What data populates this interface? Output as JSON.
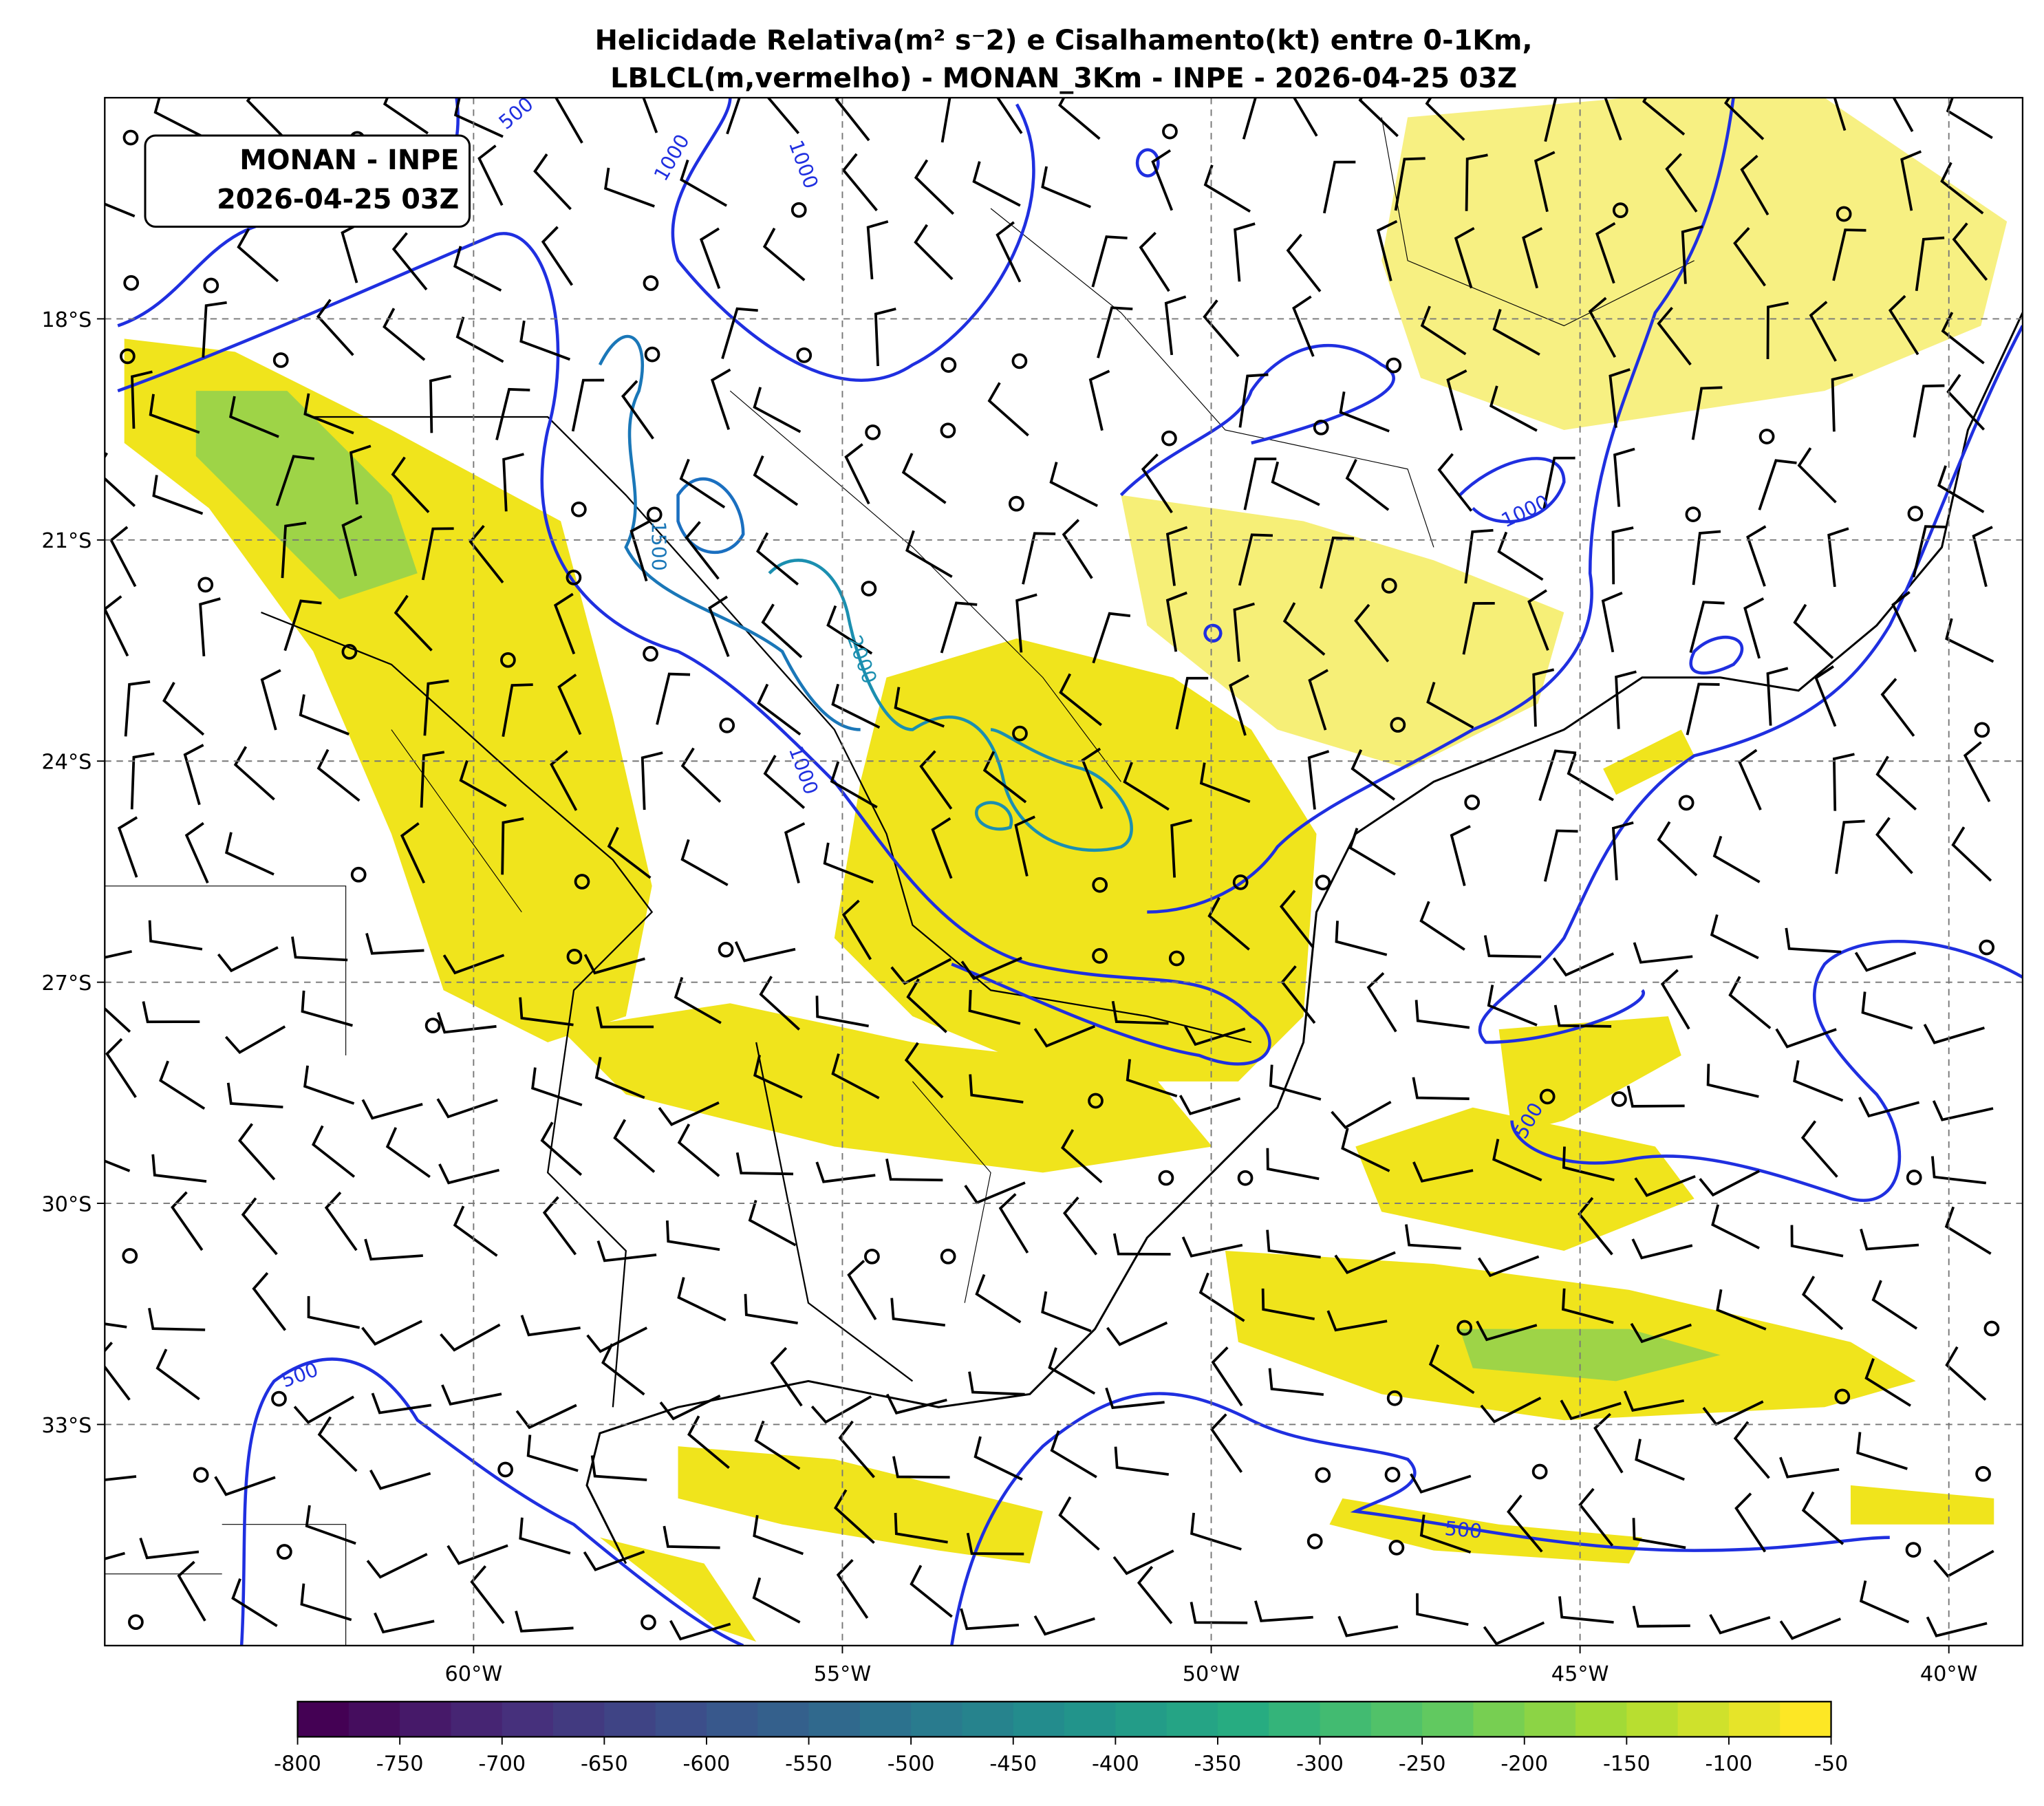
{
  "title": [
    "Helicidade Relativa(m² s⁻2) e Cisalhamento(kt) entre 0-1Km,",
    "LBLCL(m,vermelho) - MONAN_3Km - INPE - 2026-04-25 03Z"
  ],
  "inset": [
    "MONAN - INPE",
    "2026-04-25 03Z"
  ],
  "map": {
    "xlim": [
      -65,
      -39
    ],
    "ylim": [
      -36,
      -15
    ],
    "xticks": [
      {
        "value": -60,
        "label": "60°W"
      },
      {
        "value": -55,
        "label": "55°W"
      },
      {
        "value": -50,
        "label": "50°W"
      },
      {
        "value": -45,
        "label": "45°W"
      },
      {
        "value": -40,
        "label": "40°W"
      }
    ],
    "yticks": [
      {
        "value": -18,
        "label": "18°S"
      },
      {
        "value": -21,
        "label": "21°S"
      },
      {
        "value": -24,
        "label": "24°S"
      },
      {
        "value": -27,
        "label": "27°S"
      },
      {
        "value": -30,
        "label": "30°S"
      },
      {
        "value": -33,
        "label": "33°S"
      }
    ],
    "contour_labels": [
      500,
      1000,
      1000,
      1500,
      2000,
      1000,
      1000,
      500,
      500,
      500
    ]
  },
  "colorbar": {
    "lim": [
      -800,
      -50
    ],
    "ticks": [
      -800,
      -750,
      -700,
      -650,
      -600,
      -550,
      -500,
      -450,
      -400,
      -350,
      -300,
      -250,
      -200,
      -150,
      -100,
      -50
    ]
  }
}
